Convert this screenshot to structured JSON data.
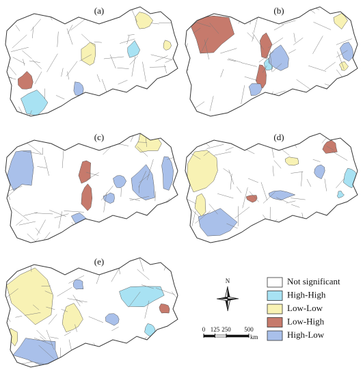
{
  "panels": [
    {
      "label": "(a)"
    },
    {
      "label": "(b)"
    },
    {
      "label": "(c)"
    },
    {
      "label": "(d)"
    },
    {
      "label": "(e)"
    }
  ],
  "legend": {
    "items": [
      {
        "label": "Not significant",
        "color": "#ffffff"
      },
      {
        "label": "High-High",
        "color": "#a8e2f3"
      },
      {
        "label": "Low-Low",
        "color": "#f8f2b4"
      },
      {
        "label": "Low-High",
        "color": "#c67a6c"
      },
      {
        "label": "High-Low",
        "color": "#a9c0ea"
      }
    ]
  },
  "north": "N",
  "scale": {
    "ticks": [
      0,
      125,
      250,
      500
    ],
    "unit": "km"
  }
}
